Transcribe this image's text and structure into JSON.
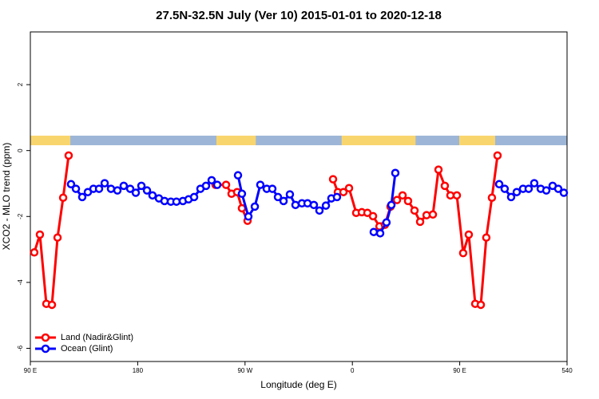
{
  "chart_data": {
    "type": "line",
    "title": "27.5N-32.5N July (Ver 10)   2015-01-01 to 2020-12-18",
    "xlabel": "Longitude (deg E)",
    "ylabel": "XCO2 - MLO trend (ppm)",
    "xlim": [
      90,
      540
    ],
    "ylim": [
      -6.4,
      3.6
    ],
    "xticks": [
      {
        "value": 90,
        "label": "90 E"
      },
      180,
      {
        "value": 270,
        "label": "90 W"
      },
      {
        "value": 360,
        "label": "0"
      },
      {
        "value": 450,
        "label": "90 E"
      },
      540
    ],
    "yticks": [
      -6,
      -4,
      -2,
      0,
      2
    ],
    "legend": "bottom-left",
    "surface_strip": {
      "land_color": "#f9d56e",
      "ocean_color": "#9db6d8",
      "land": [
        [
          90,
          123.5
        ],
        [
          246,
          279
        ],
        [
          351,
          413
        ],
        [
          449.6,
          479.7
        ]
      ]
    },
    "series": [
      {
        "name": "Land (Nadir&Glint)",
        "color": "#ff0000",
        "x": [
          93.3,
          98.0,
          103.4,
          108.1,
          112.8,
          117.5,
          122.1,
          null,
          245.3,
          254.1,
          258.7,
          263.4,
          267.4,
          272.1,
          null,
          343.8,
          347.8,
          352.5,
          357.2,
          363.2,
          367.9,
          372.6,
          377.3,
          382.7,
          387.3,
          392.0,
          397.4,
          402.1,
          406.7,
          412.1,
          416.8,
          422.2,
          427.5,
          432.2,
          437.5,
          442.2,
          447.6,
          452.9,
          457.6,
          463.0,
          467.7,
          472.3,
          477.0,
          481.7
        ],
        "values": [
          -3.09,
          -2.55,
          -4.65,
          -4.68,
          -2.64,
          -1.43,
          -0.15,
          null,
          -1.04,
          -1.04,
          -1.31,
          -1.26,
          -1.75,
          -2.13,
          null,
          -0.87,
          -1.26,
          -1.26,
          -1.14,
          -1.89,
          -1.87,
          -1.89,
          -1.99,
          -2.3,
          -2.25,
          -1.7,
          -1.5,
          -1.36,
          -1.53,
          -1.82,
          -2.16,
          -1.96,
          -1.94,
          -0.58,
          -1.07,
          -1.36,
          -1.36,
          -3.11,
          -2.55,
          -4.65,
          -4.68,
          -2.64,
          -1.43,
          -0.15
        ]
      },
      {
        "name": "Ocean (Glint)",
        "color": "#0000ff",
        "x": [
          124.1,
          128.2,
          133.5,
          138.2,
          142.9,
          147.6,
          152.3,
          157.6,
          163.0,
          168.3,
          173.7,
          178.4,
          183.1,
          187.8,
          192.4,
          197.8,
          202.5,
          207.8,
          212.5,
          217.9,
          222.6,
          227.3,
          232.6,
          237.3,
          242.0,
          246.7,
          null,
          264.1,
          267.4,
          272.8,
          278.2,
          282.8,
          288.2,
          292.9,
          297.6,
          302.3,
          307.6,
          312.3,
          317.7,
          322.4,
          327.7,
          332.4,
          337.8,
          342.4,
          347.1,
          null,
          377.9,
          383.3,
          388.6,
          392.7,
          396.0,
          null,
          483.1,
          487.7,
          493.1,
          497.8,
          503.1,
          507.8,
          512.5,
          517.9,
          522.6,
          527.9,
          532.6,
          537.3
        ],
        "values": [
          -1.02,
          -1.16,
          -1.41,
          -1.26,
          -1.16,
          -1.16,
          -0.99,
          -1.16,
          -1.21,
          -1.07,
          -1.16,
          -1.28,
          -1.07,
          -1.21,
          -1.36,
          -1.45,
          -1.53,
          -1.55,
          -1.55,
          -1.53,
          -1.48,
          -1.41,
          -1.16,
          -1.07,
          -0.9,
          -1.04,
          null,
          -0.75,
          -1.31,
          -2.0,
          -1.7,
          -1.04,
          -1.16,
          -1.16,
          -1.41,
          -1.53,
          -1.33,
          -1.65,
          -1.6,
          -1.6,
          -1.65,
          -1.82,
          -1.67,
          -1.45,
          -1.41,
          null,
          -2.47,
          -2.51,
          -2.18,
          -1.65,
          -0.68,
          null,
          -1.02,
          -1.16,
          -1.41,
          -1.26,
          -1.16,
          -1.16,
          -0.99,
          -1.16,
          -1.21,
          -1.07,
          -1.16,
          -1.28
        ]
      }
    ]
  }
}
